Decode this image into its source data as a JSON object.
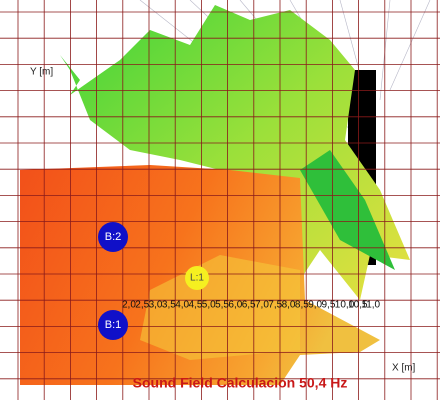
{
  "title": "Sound Field Calculacion 50,4 Hz",
  "axes": {
    "y_label": "Y [m]",
    "x_label": "X [m]"
  },
  "x_scale": [
    "2,0",
    "2,5",
    "3,0",
    "3,5",
    "4,0",
    "4,5",
    "5,0",
    "5,5",
    "6,0",
    "6,5",
    "7,0",
    "7,5",
    "8,0",
    "8,5",
    "9,0",
    "9,5",
    "10,0",
    "10,5",
    "11,0"
  ],
  "sources": [
    {
      "label": "B:2"
    },
    {
      "label": "B:1"
    }
  ],
  "listener": {
    "label": "L:1"
  }
}
